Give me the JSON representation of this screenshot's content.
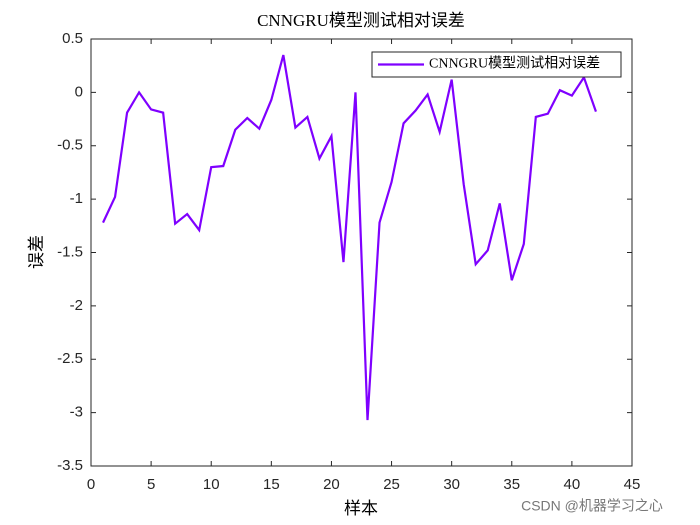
{
  "chart_data": {
    "type": "line",
    "title": "CNNGRU模型测试相对误差",
    "xlabel": "样本",
    "ylabel": "误差",
    "x": [
      1,
      2,
      3,
      4,
      5,
      6,
      7,
      8,
      9,
      10,
      11,
      12,
      13,
      14,
      15,
      16,
      17,
      18,
      19,
      20,
      21,
      22,
      23,
      24,
      25,
      26,
      27,
      28,
      29,
      30,
      31,
      32,
      33,
      34,
      35,
      36,
      37,
      38,
      39,
      40,
      41,
      42
    ],
    "series": [
      {
        "name": "CNNGRU模型测试相对误差",
        "color": "#7f00ff",
        "values": [
          -1.22,
          -0.98,
          -0.19,
          0.0,
          -0.16,
          -0.19,
          -1.23,
          -1.14,
          -1.29,
          -0.7,
          -0.69,
          -0.35,
          -0.24,
          -0.34,
          -0.07,
          0.35,
          -0.33,
          -0.23,
          -0.62,
          -0.41,
          -1.59,
          0.0,
          -3.07,
          -1.22,
          -0.84,
          -0.29,
          -0.17,
          -0.02,
          -0.37,
          0.12,
          -0.86,
          -1.61,
          -1.48,
          -1.04,
          -1.76,
          -1.42,
          -0.23,
          -0.2,
          0.02,
          -0.03,
          0.14,
          -0.18
        ]
      }
    ],
    "xlim": [
      0,
      45
    ],
    "xticks": [
      0,
      5,
      10,
      15,
      20,
      25,
      30,
      35,
      40,
      45
    ],
    "ylim": [
      -3.5,
      0.5
    ],
    "yticks": [
      -3.5,
      -3,
      -2.5,
      -2,
      -1.5,
      -1,
      -0.5,
      0,
      0.5
    ],
    "legend": "northeast",
    "grid": false
  },
  "watermark": "CSDN @机器学习之心"
}
